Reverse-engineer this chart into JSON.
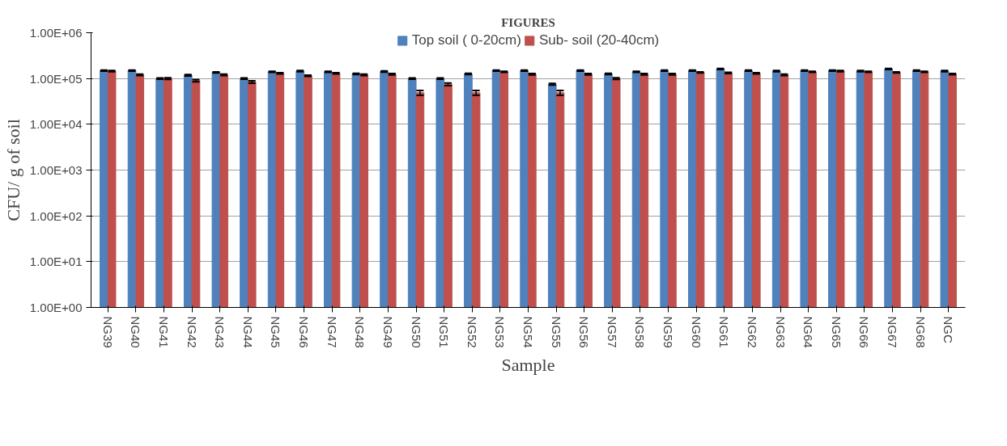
{
  "chart_data": {
    "type": "bar",
    "title": "FIGURES",
    "xlabel": "Sample",
    "ylabel": "CFU/ g of soil",
    "categories": [
      "NG39",
      "NG40",
      "NG41",
      "NG42",
      "NG43",
      "NG44",
      "NG45",
      "NG46",
      "NG47",
      "NG48",
      "NG49",
      "NG50",
      "NG51",
      "NG52",
      "NG53",
      "NG54",
      "NG55",
      "NG56",
      "NG57",
      "NG58",
      "NG59",
      "NG60",
      "NG61",
      "NG62",
      "NG63",
      "NG64",
      "NG65",
      "NG66",
      "NG67",
      "NG68",
      "NGC"
    ],
    "series": [
      {
        "name": "Top soil ( 0-20cm)",
        "color": "#4f81bd",
        "values": [
          149000,
          149000,
          100000,
          118000,
          136000,
          100000,
          140000,
          145000,
          140000,
          126000,
          142000,
          100000,
          100000,
          126000,
          149000,
          149000,
          75000,
          149000,
          126000,
          140000,
          149000,
          149000,
          161000,
          149000,
          145000,
          149000,
          149000,
          145000,
          161000,
          149000,
          145000
        ],
        "errors": [
          4000,
          4000,
          3000,
          4000,
          4000,
          3000,
          4000,
          4000,
          4000,
          4000,
          4000,
          3000,
          3000,
          4000,
          4000,
          4000,
          3000,
          4000,
          4000,
          4000,
          4000,
          4000,
          4000,
          4000,
          4000,
          4000,
          4000,
          4000,
          4000,
          4000,
          4000
        ]
      },
      {
        "name": "Sub- soil (20-40cm)",
        "color": "#c0504d",
        "values": [
          145000,
          120000,
          100000,
          90000,
          120000,
          84000,
          130000,
          115000,
          130000,
          120000,
          124000,
          49000,
          75000,
          49000,
          140000,
          124000,
          49000,
          124000,
          100000,
          124000,
          124000,
          136000,
          132000,
          130000,
          120000,
          140000,
          145000,
          140000,
          136000,
          140000,
          125000
        ],
        "errors": [
          4000,
          4000,
          4000,
          5000,
          4000,
          5000,
          4000,
          4000,
          4000,
          4000,
          4000,
          6000,
          5000,
          6000,
          4000,
          4000,
          6000,
          4000,
          4000,
          4000,
          4000,
          4000,
          4000,
          4000,
          4000,
          4000,
          4000,
          4000,
          4000,
          4000,
          4000
        ]
      }
    ],
    "log": true,
    "ylim": [
      1,
      1000000
    ],
    "yticks": [
      {
        "value": 1,
        "label": "1.00E+00"
      },
      {
        "value": 10,
        "label": "1.00E+01"
      },
      {
        "value": 100,
        "label": "1.00E+02"
      },
      {
        "value": 1000,
        "label": "1.00E+03"
      },
      {
        "value": 10000,
        "label": "1.00E+04"
      },
      {
        "value": 100000,
        "label": "1.00E+05"
      },
      {
        "value": 1000000,
        "label": "1.00E+06"
      }
    ],
    "grid": "y",
    "legend": "top"
  }
}
